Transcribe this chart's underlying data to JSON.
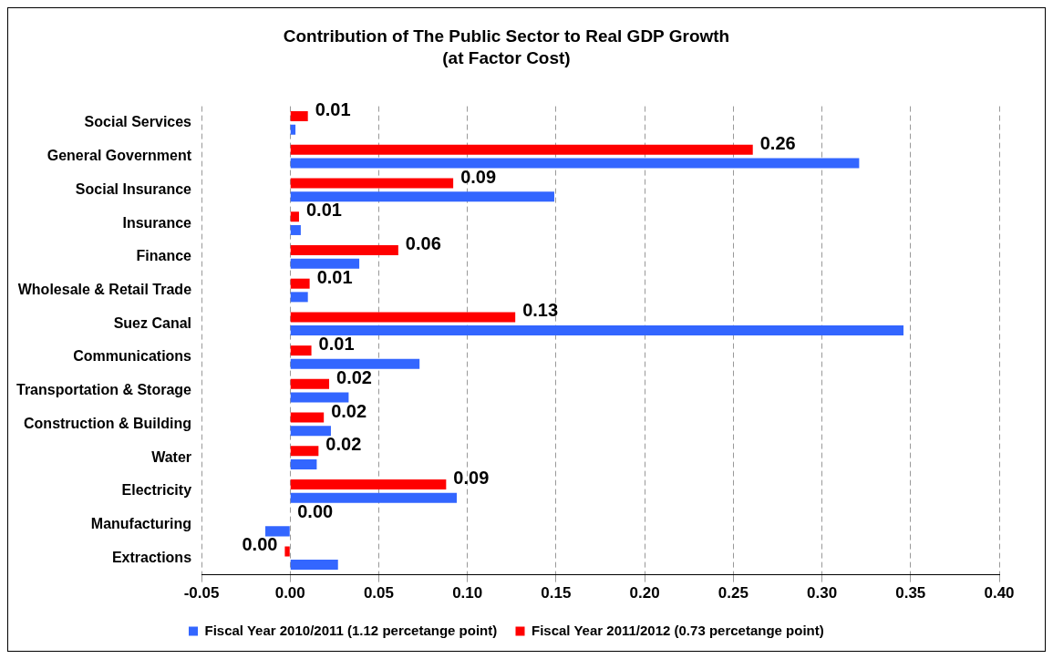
{
  "chart_data": {
    "type": "bar",
    "orientation": "horizontal",
    "title": "Contribution of The Public Sector to Real GDP Growth",
    "subtitle": "(at Factor Cost)",
    "categories": [
      "Social Services",
      "General Government",
      "Social Insurance",
      "Insurance",
      "Finance",
      "Wholesale & Retail Trade",
      "Suez Canal",
      "Communications",
      "Transportation & Storage",
      "Construction & Building",
      "Water",
      "Electricity",
      "Manufacturing",
      "Extractions"
    ],
    "series": [
      {
        "name": "Fiscal Year 2010/2011 (1.12 percetange point)",
        "color": "#3366ff",
        "values": [
          0.003,
          0.321,
          0.149,
          0.006,
          0.039,
          0.01,
          0.346,
          0.073,
          0.033,
          0.023,
          0.015,
          0.094,
          -0.014,
          0.027
        ]
      },
      {
        "name": "Fiscal Year 2011/2012 (0.73 percetange point)",
        "color": "#ff0000",
        "values": [
          0.01,
          0.261,
          0.092,
          0.005,
          0.061,
          0.011,
          0.127,
          0.012,
          0.022,
          0.019,
          0.016,
          0.088,
          0.0,
          -0.003
        ],
        "value_labels": [
          "0.01",
          "0.26",
          "0.09",
          "0.01",
          "0.06",
          "0.01",
          "0.13",
          "0.01",
          "0.02",
          "0.02",
          "0.02",
          "0.09",
          "0.00",
          "0.00"
        ]
      }
    ],
    "xlim": [
      -0.05,
      0.4
    ],
    "xticks": [
      {
        "value": -0.05,
        "label": "-0.05"
      },
      {
        "value": 0,
        "label": "0.00"
      },
      {
        "value": 0.05,
        "label": "0.05"
      },
      {
        "value": 0.1,
        "label": "0.10"
      },
      {
        "value": 0.15,
        "label": "0.15"
      },
      {
        "value": 0.2,
        "label": "0.20"
      },
      {
        "value": 0.25,
        "label": "0.25"
      },
      {
        "value": 0.3,
        "label": "0.30"
      },
      {
        "value": 0.35,
        "label": "0.35"
      },
      {
        "value": 0.4,
        "label": "0.40"
      }
    ],
    "grid": "x",
    "legend": "bottom"
  }
}
